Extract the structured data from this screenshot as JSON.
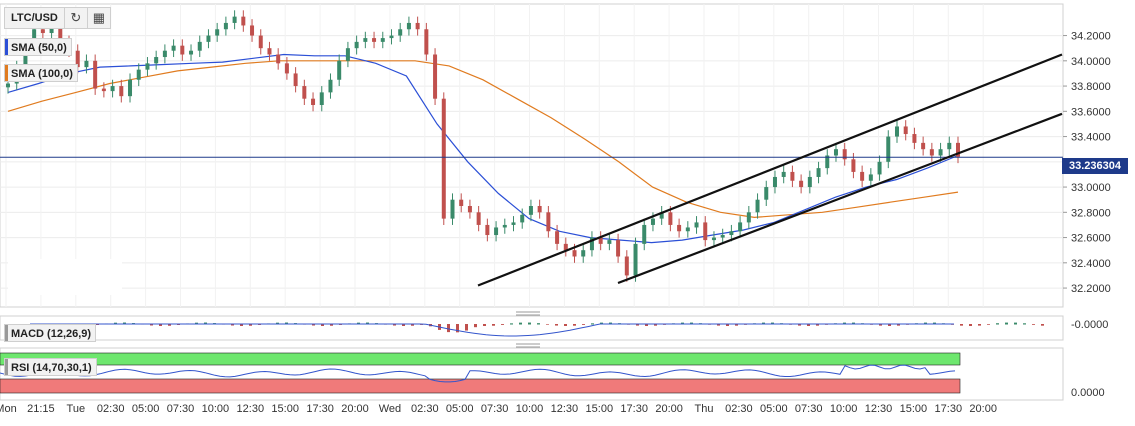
{
  "toolbar": {
    "symbol": "LTC/USD",
    "refresh_icon": "refresh-icon",
    "calendar_icon": "calendar-icon"
  },
  "indicators": {
    "sma50": "SMA (50,0)",
    "sma100": "SMA (100,0)",
    "macd": "MACD (12,26,9)",
    "rsi": "RSI (14,70,30,1)"
  },
  "colors": {
    "up": "#3a8a6a",
    "down": "#c0504d",
    "sma50": "#2b4fd6",
    "sma100": "#e07b1f",
    "rsi_line": "#3355cc",
    "rsi_over": "#6ee76e",
    "rsi_under": "#f07a7a",
    "price_line": "#1e3a8a",
    "channel": "#111111"
  },
  "chart_data": {
    "type": "line",
    "symbol": "LTC/USD",
    "last_price": "33.236304",
    "price_axis": {
      "ylim": [
        32.05,
        34.45
      ],
      "ticks": [
        "34.2000",
        "34.0000",
        "33.8000",
        "33.6000",
        "33.4000",
        "33.2000",
        "33.0000",
        "32.8000",
        "32.6000",
        "32.4000",
        "32.2000"
      ]
    },
    "time_axis": {
      "ticks": [
        "Mon",
        "21:15",
        "Tue",
        "02:30",
        "05:00",
        "07:30",
        "10:00",
        "12:30",
        "15:00",
        "17:30",
        "20:00",
        "Wed",
        "02:30",
        "05:00",
        "07:30",
        "10:00",
        "12:30",
        "15:00",
        "17:30",
        "20:00",
        "Thu",
        "02:30",
        "05:00",
        "07:30",
        "10:00",
        "12:30",
        "15:00",
        "17:30",
        "20:00"
      ]
    },
    "candles_close": [
      33.82,
      33.95,
      34.1,
      34.25,
      34.22,
      34.3,
      34.15,
      34.08,
      33.95,
      34.0,
      33.78,
      33.76,
      33.8,
      33.72,
      33.85,
      33.93,
      33.98,
      34.03,
      34.08,
      34.12,
      34.05,
      34.08,
      34.15,
      34.2,
      34.25,
      34.3,
      34.35,
      34.28,
      34.2,
      34.1,
      34.05,
      33.98,
      33.9,
      33.8,
      33.7,
      33.65,
      33.75,
      33.85,
      34.0,
      34.1,
      34.15,
      34.18,
      34.15,
      34.18,
      34.2,
      34.25,
      34.3,
      34.25,
      34.05,
      33.7,
      32.75,
      32.9,
      32.85,
      32.8,
      32.7,
      32.62,
      32.68,
      32.7,
      32.72,
      32.78,
      32.85,
      32.8,
      32.65,
      32.55,
      32.5,
      32.45,
      32.5,
      32.6,
      32.55,
      32.58,
      32.45,
      32.3,
      32.55,
      32.7,
      32.75,
      32.8,
      32.7,
      32.65,
      32.68,
      32.72,
      32.58,
      32.6,
      32.62,
      32.65,
      32.72,
      32.8,
      32.9,
      33.0,
      33.08,
      33.12,
      33.05,
      33.0,
      33.08,
      33.15,
      33.25,
      33.3,
      33.22,
      33.12,
      33.05,
      33.1,
      33.2,
      33.4,
      33.48,
      33.42,
      33.35,
      33.3,
      33.25,
      33.3,
      33.35,
      33.24
    ],
    "sma50": [
      33.75,
      33.82,
      33.9,
      33.95,
      33.96,
      33.97,
      33.98,
      33.99,
      34.02,
      34.05,
      34.04,
      34.04,
      33.98,
      33.88,
      33.5,
      33.2,
      32.95,
      32.75,
      32.65,
      32.6,
      32.58,
      32.56,
      32.58,
      32.62,
      32.66,
      32.72,
      32.82,
      32.92,
      33.0,
      33.06,
      33.15,
      33.25
    ],
    "sma100": [
      33.6,
      33.68,
      33.75,
      33.82,
      33.87,
      33.92,
      33.95,
      33.98,
      34.0,
      34.0,
      34.0,
      34.0,
      34.0,
      33.96,
      33.85,
      33.7,
      33.55,
      33.38,
      33.2,
      33.0,
      32.88,
      32.8,
      32.76,
      32.78,
      32.8,
      32.84,
      32.88,
      32.92,
      32.96
    ],
    "channel_upper": [
      [
        32.22,
        34.05
      ]
    ],
    "channel_lower": [
      [
        32.24,
        33.58
      ]
    ],
    "macd_axis_tick": "-0.0000",
    "rsi_axis_tick": "0.0000",
    "rsi_levels": [
      70,
      30
    ],
    "legend": [
      "SMA (50,0)",
      "SMA (100,0)",
      "MACD (12,26,9)",
      "RSI (14,70,30,1)"
    ]
  }
}
